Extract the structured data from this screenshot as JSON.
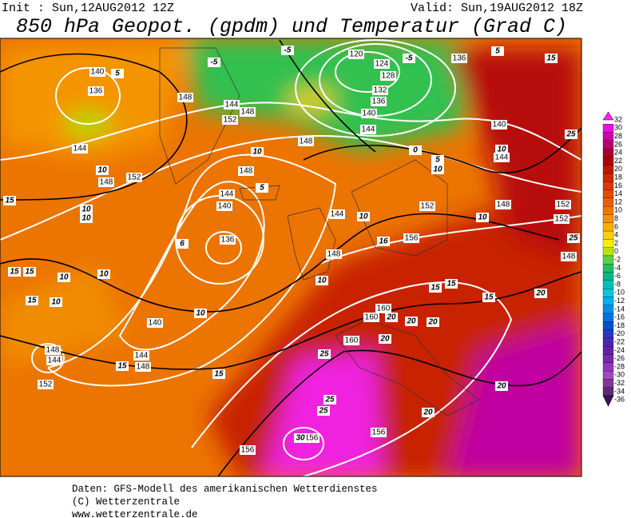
{
  "header": {
    "init": "Init : Sun,12AUG2012 12Z",
    "valid": "Valid: Sun,19AUG2012 18Z",
    "title": "850 hPa Geopot. (gpdm) und Temperatur (Grad C)"
  },
  "colorbar": {
    "values": [
      32,
      30,
      28,
      26,
      24,
      22,
      20,
      18,
      16,
      14,
      12,
      10,
      8,
      6,
      4,
      2,
      0,
      -2,
      -4,
      -6,
      -8,
      -10,
      -12,
      -14,
      -16,
      -18,
      -20,
      -22,
      -24,
      -26,
      -28,
      -30,
      -32,
      -34,
      -36
    ],
    "colors": [
      "#ff20ff",
      "#e810e0",
      "#d000b0",
      "#b80070",
      "#a80030",
      "#b00010",
      "#c01800",
      "#d02800",
      "#dc3800",
      "#e44c00",
      "#ec6000",
      "#f07800",
      "#f49400",
      "#f8b000",
      "#fcd000",
      "#ffee00",
      "#b8e400",
      "#60d040",
      "#20c060",
      "#00b888",
      "#00c0b8",
      "#00c8e0",
      "#00b0f0",
      "#0090e8",
      "#0070e0",
      "#0050d0",
      "#2838c0",
      "#4828b0",
      "#6020a8",
      "#7828b0",
      "#9038b8",
      "#a048c0",
      "#803898",
      "#602878",
      "#401058"
    ]
  },
  "map": {
    "geopotential_labels": [
      "140",
      "136",
      "144",
      "148",
      "152",
      "148",
      "144",
      "148",
      "152",
      "148",
      "148",
      "144",
      "140",
      "136",
      "144",
      "148",
      "152",
      "156",
      "148",
      "152",
      "152",
      "148",
      "140",
      "144",
      "148",
      "148",
      "144",
      "152",
      "160",
      "160",
      "160",
      "156",
      "156",
      "156",
      "140",
      "144",
      "136",
      "132",
      "128",
      "124",
      "120",
      "136",
      "140",
      "144"
    ],
    "temperature_labels": [
      "15",
      "10",
      "10",
      "15",
      "15",
      "10",
      "15",
      "10",
      "10",
      "10",
      "15",
      "15",
      "16",
      "10",
      "15",
      "15",
      "15",
      "20",
      "20",
      "20",
      "20",
      "20",
      "25",
      "25",
      "25",
      "20",
      "20",
      "25",
      "25",
      "15",
      "10",
      "10",
      "10",
      "10",
      "10",
      "5",
      "0",
      "-5",
      "-5",
      "-5",
      "5",
      "5",
      "10",
      "6",
      "5",
      "30"
    ]
  },
  "footer": [
    "Daten: GFS-Modell des amerikanischen Wetterdienstes",
    "(C) Wetterzentrale",
    "www.wetterzentrale.de"
  ]
}
